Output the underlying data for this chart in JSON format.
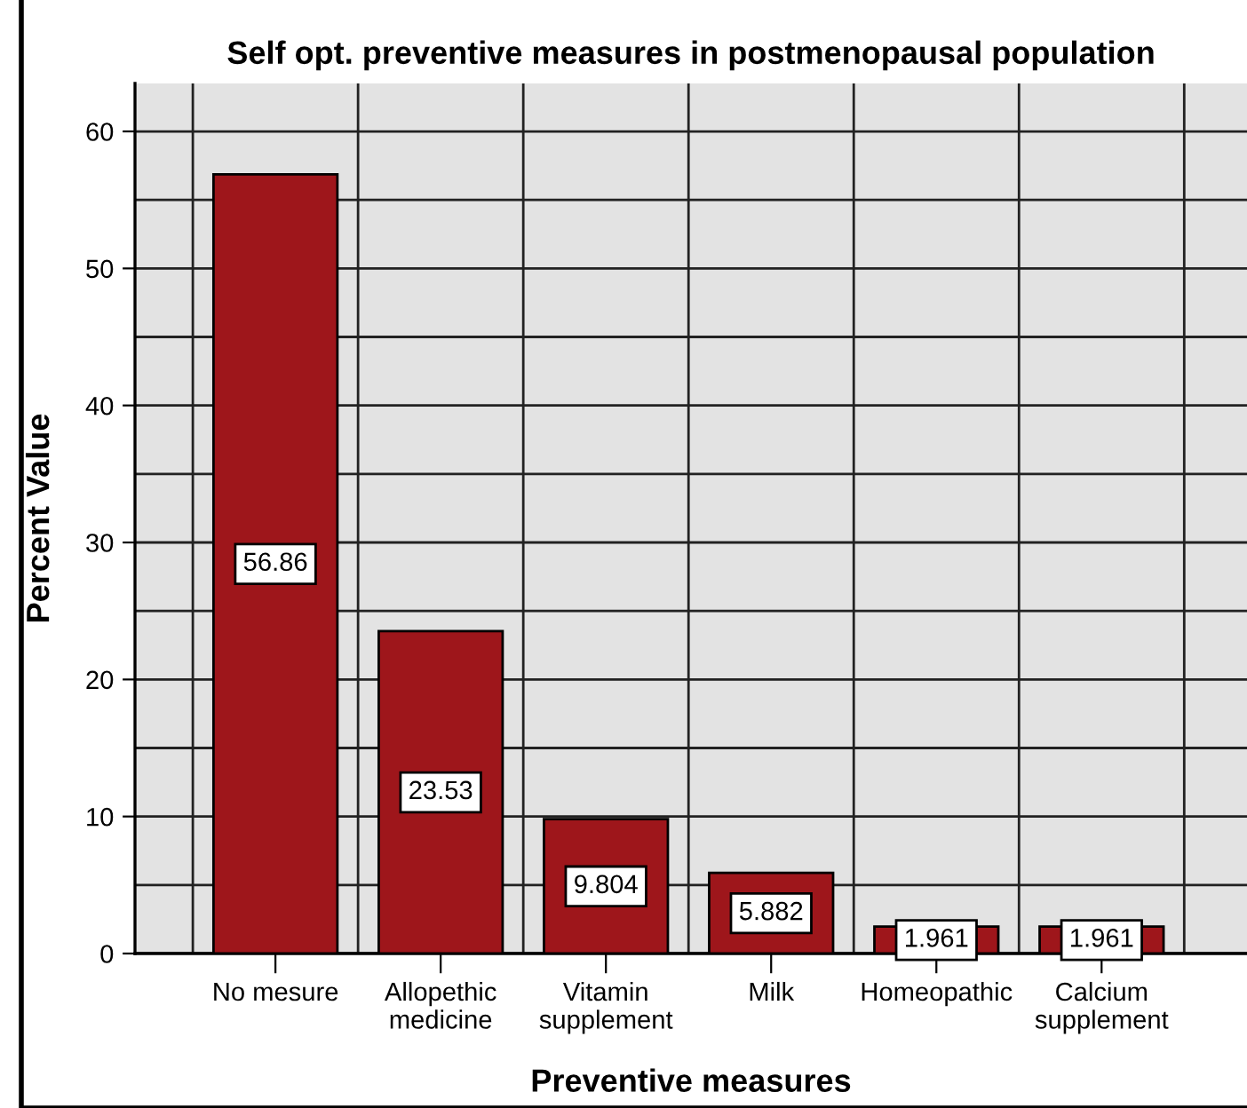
{
  "chart_data": {
    "type": "bar",
    "title": "Self opt. preventive measures in postmenopausal population",
    "xlabel": "Preventive measures",
    "ylabel": "Percent Value",
    "categories": [
      "No mesure",
      "Allopethic\nmedicine",
      "Vitamin\nsupplement",
      "Milk",
      "Homeopathic",
      "Calcium\nsupplement"
    ],
    "values": [
      56.86,
      23.53,
      9.804,
      5.882,
      1.961,
      1.961
    ],
    "color": "#9e161b",
    "data_labels": true,
    "ylim": [
      0,
      63.5
    ],
    "yticks": [
      0,
      {
        "value": 5,
        "label": null
      },
      10,
      {
        "value": 15,
        "label": null
      },
      20,
      {
        "value": 25,
        "label": null
      },
      30,
      {
        "value": 35,
        "label": null
      },
      40,
      {
        "value": 45,
        "label": null
      },
      50,
      {
        "value": 55,
        "label": null
      },
      60
    ],
    "grid": true
  }
}
